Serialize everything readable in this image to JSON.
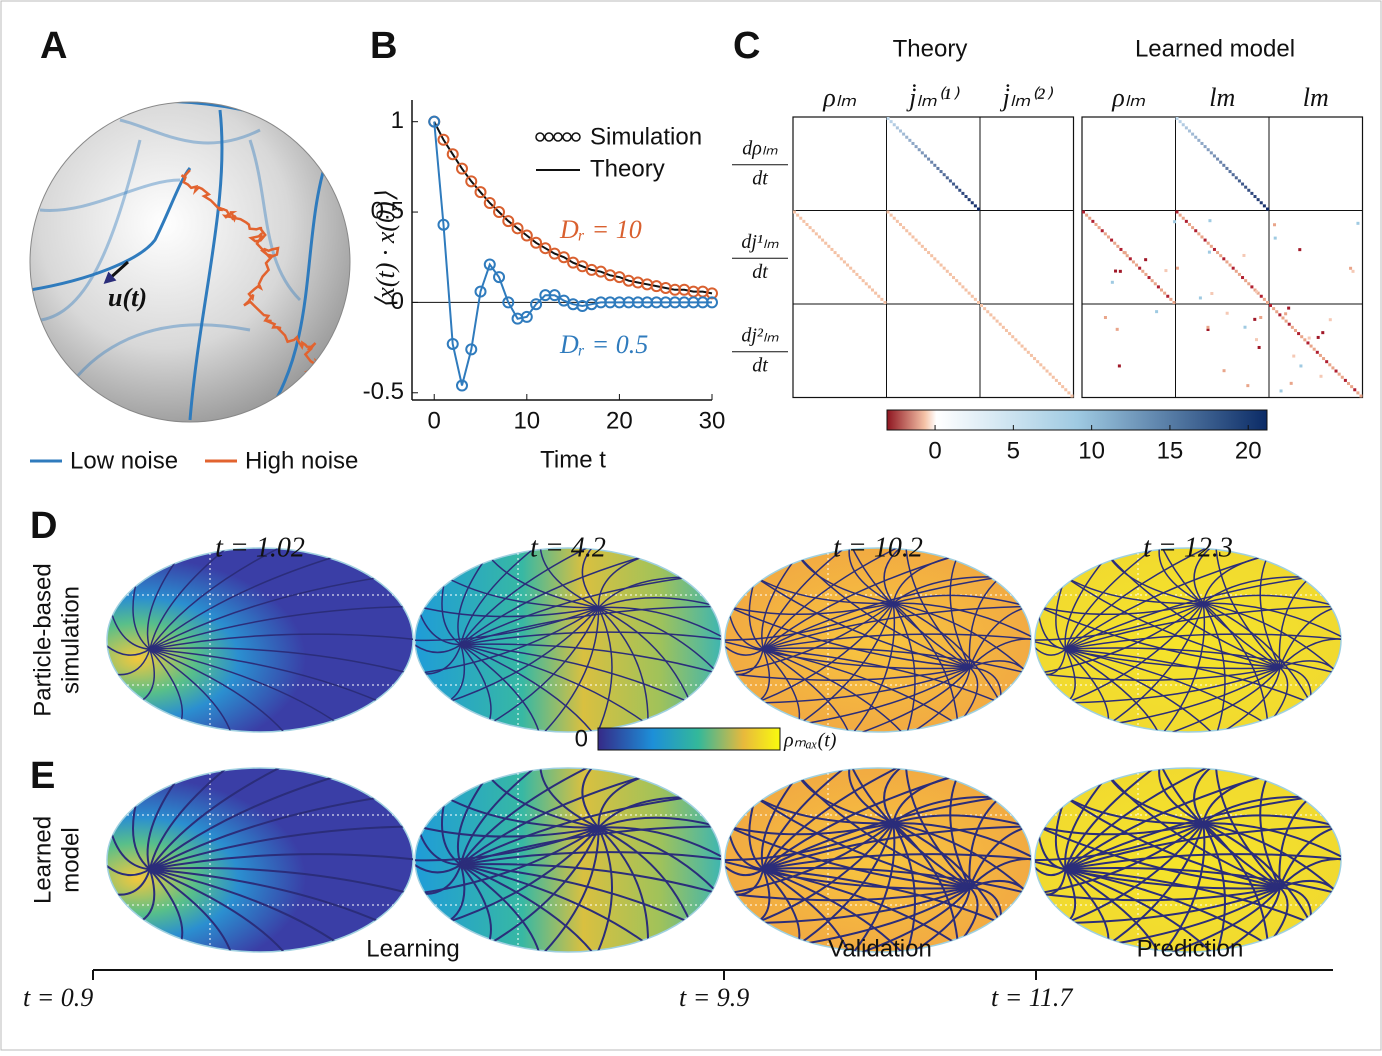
{
  "panel_labels": [
    "A",
    "B",
    "C",
    "D",
    "E"
  ],
  "panel_a": {
    "vector_label": "u(t)",
    "legend": [
      {
        "name": "Low noise",
        "color": "#2f7bbd"
      },
      {
        "name": "High noise",
        "color": "#e2632f"
      }
    ]
  },
  "chart_data": {
    "type": "line",
    "ylabel": "⟨x(t) · x(0)⟩",
    "xlabel": "Time t",
    "x": [
      0,
      1,
      2,
      3,
      4,
      5,
      6,
      7,
      8,
      9,
      10,
      11,
      12,
      13,
      14,
      15,
      16,
      17,
      18,
      19,
      20,
      21,
      22,
      23,
      24,
      25,
      26,
      27,
      28,
      29,
      30
    ],
    "xlim": [
      -2.4,
      30
    ],
    "xticks": [
      0,
      10,
      20,
      30
    ],
    "ylim": [
      -0.54,
      1.12
    ],
    "yticks": [
      -0.5,
      0,
      0.5,
      1
    ],
    "legend": [
      "Simulation",
      "Theory"
    ],
    "zero_line": true,
    "series": [
      {
        "name": "Dᵣ = 10",
        "color": "#d9602f",
        "theory_color": "#111111",
        "simulation": [
          1,
          0.9,
          0.82,
          0.74,
          0.67,
          0.61,
          0.55,
          0.5,
          0.45,
          0.41,
          0.37,
          0.33,
          0.3,
          0.27,
          0.25,
          0.22,
          0.2,
          0.18,
          0.17,
          0.15,
          0.14,
          0.12,
          0.11,
          0.1,
          0.09,
          0.08,
          0.07,
          0.07,
          0.06,
          0.06,
          0.05
        ],
        "theory": [
          1,
          0.9,
          0.82,
          0.74,
          0.67,
          0.61,
          0.55,
          0.5,
          0.45,
          0.41,
          0.37,
          0.33,
          0.3,
          0.27,
          0.25,
          0.22,
          0.2,
          0.18,
          0.17,
          0.15,
          0.14,
          0.12,
          0.11,
          0.1,
          0.09,
          0.08,
          0.07,
          0.07,
          0.06,
          0.06,
          0.05
        ]
      },
      {
        "name": "Dᵣ = 0.5",
        "color": "#2f7bbd",
        "theory_color": "#2f7bbd",
        "simulation": [
          1,
          0.43,
          -0.23,
          -0.46,
          -0.26,
          0.06,
          0.21,
          0.14,
          0,
          -0.09,
          -0.08,
          -0.01,
          0.04,
          0.04,
          0.01,
          -0.01,
          -0.02,
          -0.01,
          0,
          0,
          0,
          0,
          0,
          0,
          0,
          0,
          0,
          0,
          0,
          0,
          0
        ],
        "theory": [
          1,
          0.43,
          -0.23,
          -0.46,
          -0.26,
          0.06,
          0.21,
          0.14,
          0,
          -0.09,
          -0.08,
          -0.01,
          0.04,
          0.04,
          0.01,
          -0.01,
          -0.02,
          -0.01,
          0,
          0,
          0,
          0,
          0,
          0,
          0,
          0,
          0,
          0,
          0,
          0,
          0
        ]
      }
    ]
  },
  "panel_c": {
    "titles": [
      "Theory",
      "Learned model"
    ],
    "theory_columns": [
      "ρₗₘ",
      "j̇ₗₘ⁽¹⁾",
      "j̇ₗₘ⁽²⁾"
    ],
    "learned_columns": [
      "ρₗₘ",
      "lm",
      "lm"
    ],
    "rows": [
      {
        "numerator": "dρₗₘ",
        "denominator": "dt"
      },
      {
        "numerator": "dj¹ₗₘ",
        "denominator": "dt"
      },
      {
        "numerator": "dj²ₗₘ",
        "denominator": "dt"
      }
    ],
    "colorbar": {
      "lim": [
        -3.07,
        21.2
      ],
      "ticks": [
        0,
        5,
        10,
        15,
        20
      ]
    }
  },
  "panel_de": {
    "snapshots": [
      "t = 1.02",
      "t = 4.2",
      "t = 10.2",
      "t = 12.3"
    ],
    "row_labels": {
      "simulation": [
        "Particle-based",
        "simulation"
      ],
      "model": [
        "Learned",
        "model"
      ]
    },
    "colorbar": {
      "min_label": "0",
      "max_label": "ρₘₐₓ(t)"
    }
  },
  "timeline": {
    "phases": [
      "Learning",
      "Validation",
      "Prediction"
    ],
    "boundaries": [
      "t = 0.9",
      "t = 9.9",
      "t = 11.7"
    ]
  }
}
